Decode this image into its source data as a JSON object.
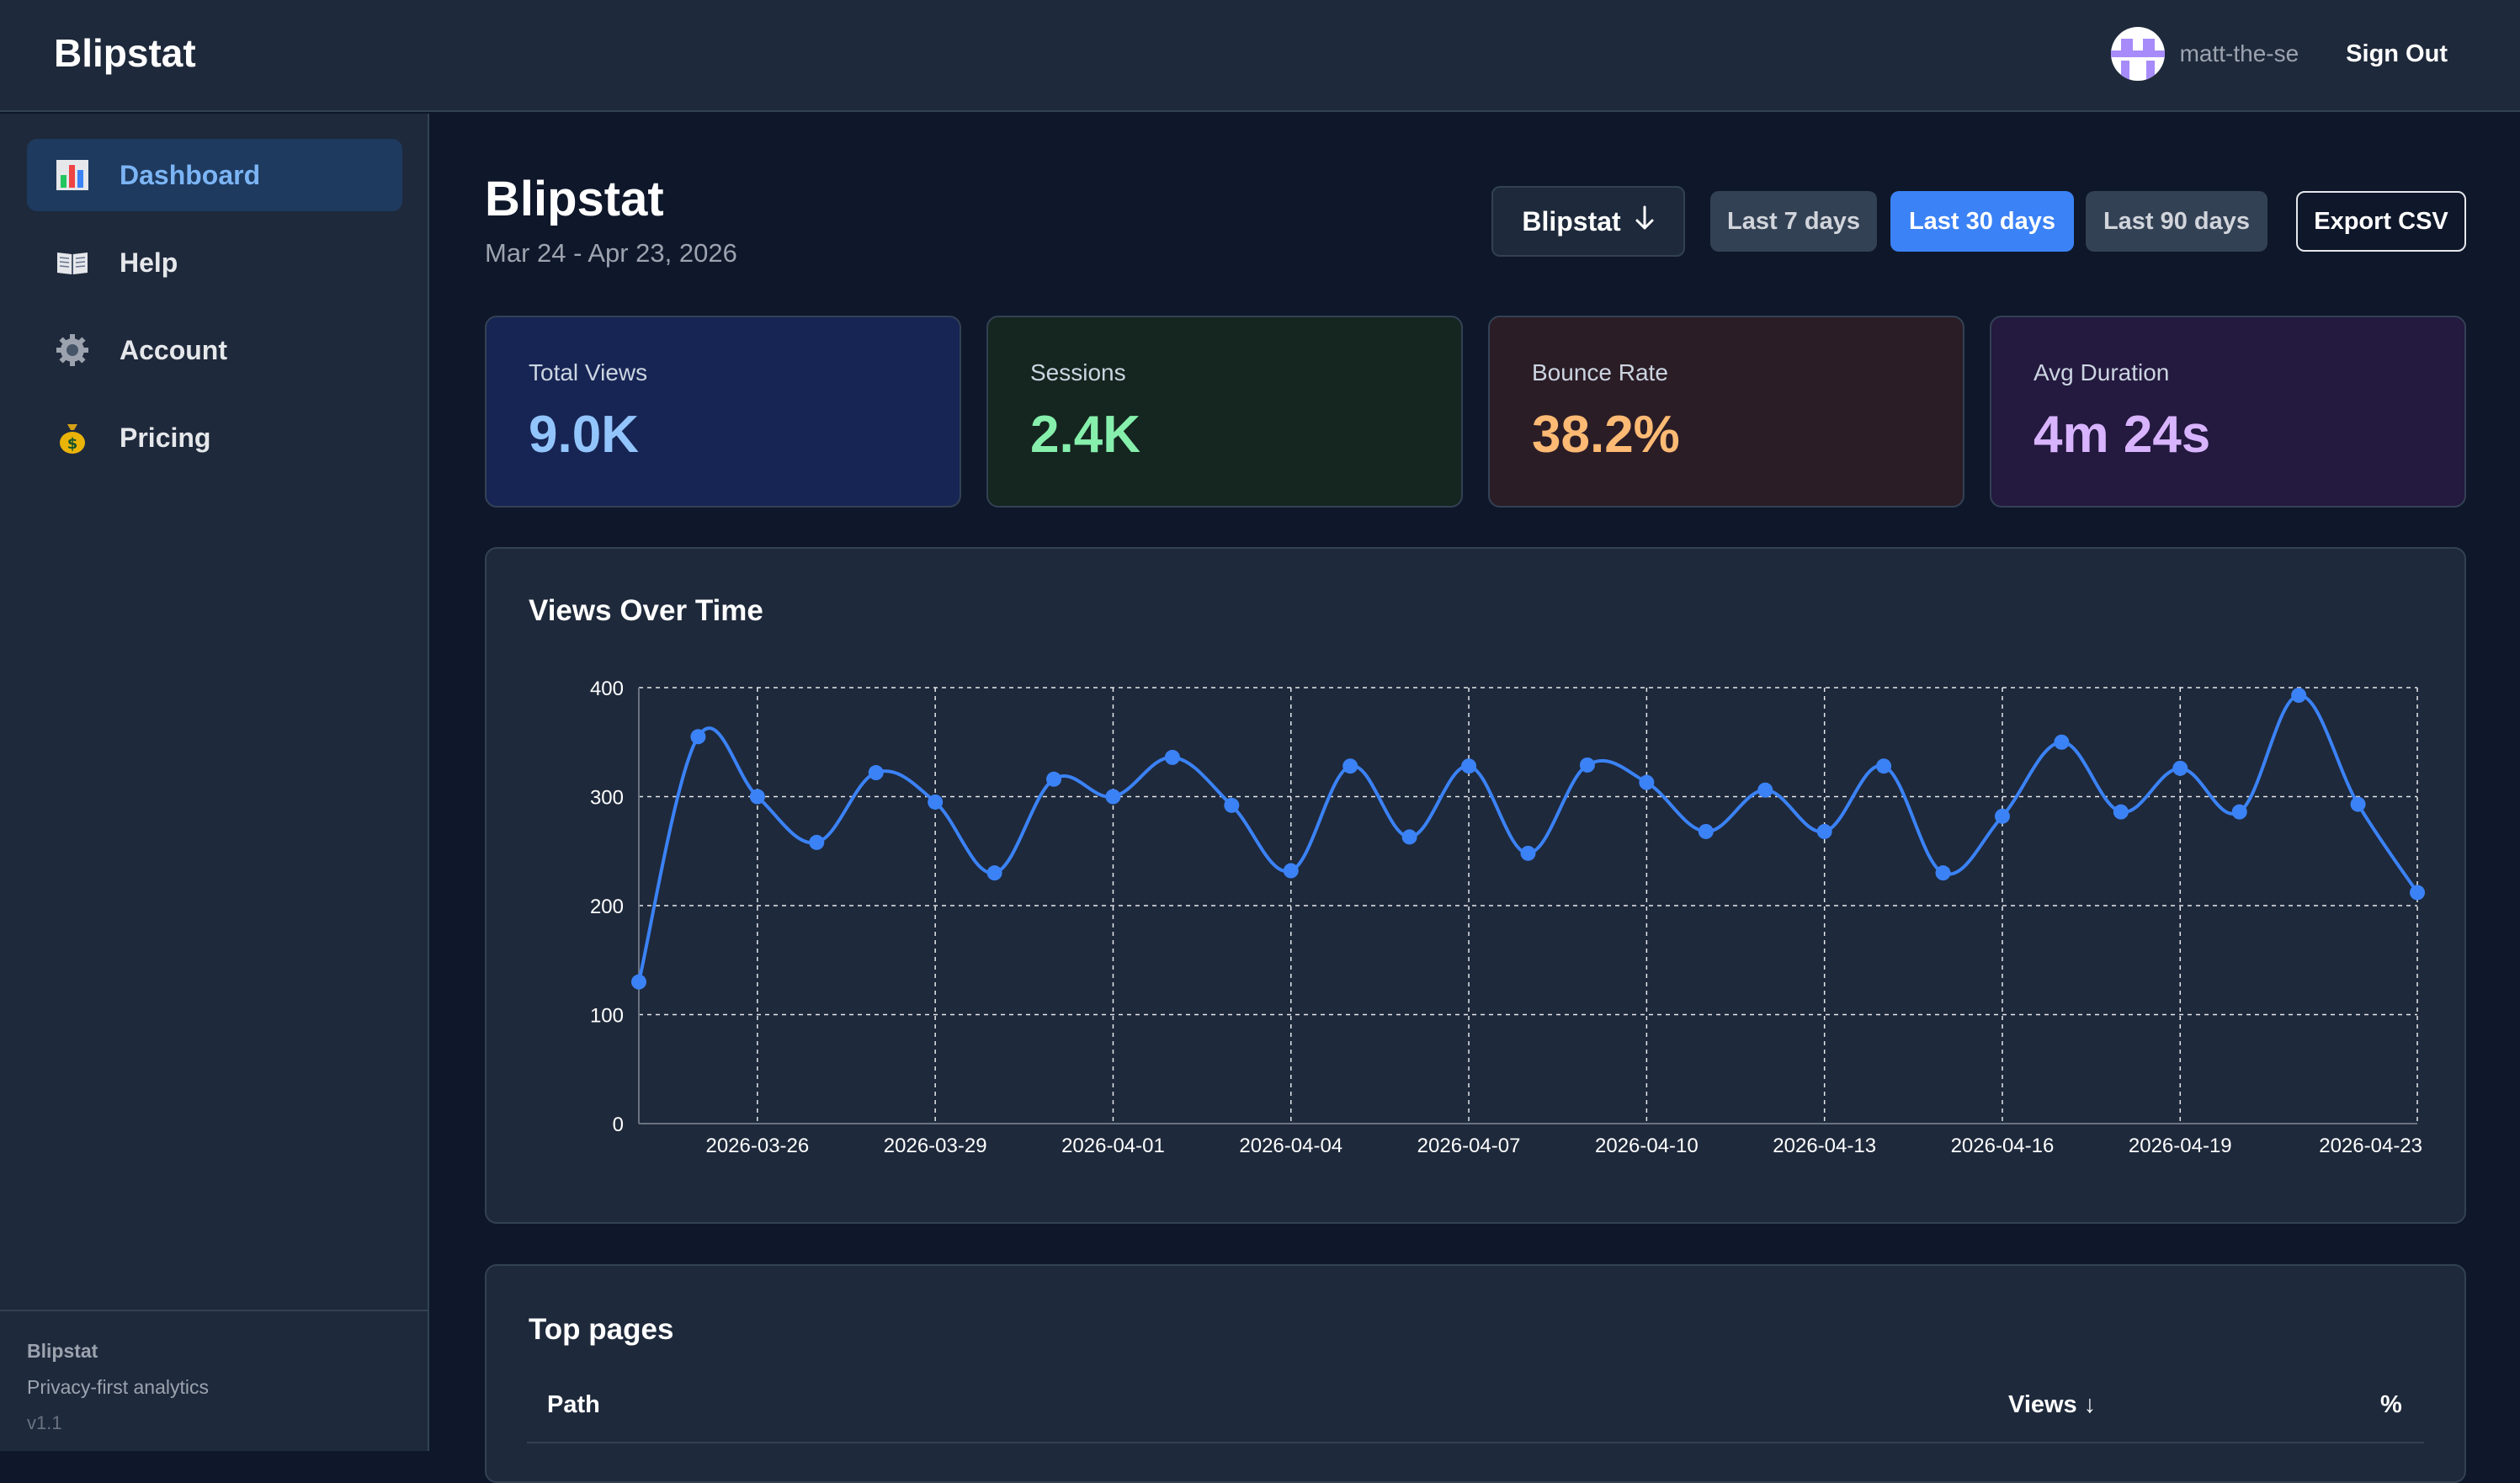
{
  "app": {
    "brand": "Blipstat"
  },
  "header": {
    "username": "matt-the-se",
    "sign_out_label": "Sign Out"
  },
  "sidebar": {
    "items": [
      {
        "label": "Dashboard",
        "icon": "bar-chart-icon",
        "active": true
      },
      {
        "label": "Help",
        "icon": "book-icon",
        "active": false
      },
      {
        "label": "Account",
        "icon": "gear-icon",
        "active": false
      },
      {
        "label": "Pricing",
        "icon": "money-bag-icon",
        "active": false
      }
    ],
    "footer": {
      "name": "Blipstat",
      "tagline": "Privacy-first analytics",
      "version": "v1.1"
    }
  },
  "main": {
    "title": "Blipstat",
    "date_range": "Mar 24 - Apr 23, 2026",
    "site_select": "Blipstat",
    "ranges": [
      "Last 7 days",
      "Last 30 days",
      "Last 90 days"
    ],
    "active_range": "Last 30 days",
    "export_label": "Export CSV"
  },
  "stats": [
    {
      "label": "Total Views",
      "value": "9.0K",
      "color": "#93c5fd",
      "bg": "#172554"
    },
    {
      "label": "Sessions",
      "value": "2.4K",
      "color": "#86efac",
      "bg": "#14261f"
    },
    {
      "label": "Bounce Rate",
      "value": "38.2%",
      "color": "#fdba74",
      "bg": "#2b1d26"
    },
    {
      "label": "Avg Duration",
      "value": "4m 24s",
      "color": "#d8b4fe",
      "bg": "#24193f"
    }
  ],
  "chart_panel": {
    "title": "Views Over Time"
  },
  "chart_data": {
    "type": "line",
    "x": [
      "2026-03-24",
      "2026-03-25",
      "2026-03-26",
      "2026-03-27",
      "2026-03-28",
      "2026-03-29",
      "2026-03-30",
      "2026-03-31",
      "2026-04-01",
      "2026-04-02",
      "2026-04-03",
      "2026-04-04",
      "2026-04-05",
      "2026-04-06",
      "2026-04-07",
      "2026-04-08",
      "2026-04-09",
      "2026-04-10",
      "2026-04-11",
      "2026-04-12",
      "2026-04-13",
      "2026-04-14",
      "2026-04-15",
      "2026-04-16",
      "2026-04-17",
      "2026-04-18",
      "2026-04-19",
      "2026-04-20",
      "2026-04-21",
      "2026-04-22",
      "2026-04-23"
    ],
    "series": [
      {
        "values": [
          130,
          355,
          300,
          258,
          322,
          295,
          230,
          316,
          300,
          336,
          292,
          232,
          328,
          263,
          328,
          248,
          329,
          313,
          268,
          306,
          268,
          328,
          230,
          282,
          350,
          286,
          326,
          286,
          393,
          293,
          212
        ],
        "color": "#3b82f6"
      }
    ],
    "x_ticks": [
      "2026-03-26",
      "2026-03-29",
      "2026-04-01",
      "2026-04-04",
      "2026-04-07",
      "2026-04-10",
      "2026-04-13",
      "2026-04-16",
      "2026-04-19",
      "2026-04-23"
    ],
    "y_ticks": [
      0,
      100,
      200,
      300,
      400
    ],
    "ylim": [
      0,
      400
    ],
    "grid": true
  },
  "top_pages": {
    "title": "Top pages",
    "columns": [
      "Path",
      "Views ↓",
      "%"
    ]
  }
}
